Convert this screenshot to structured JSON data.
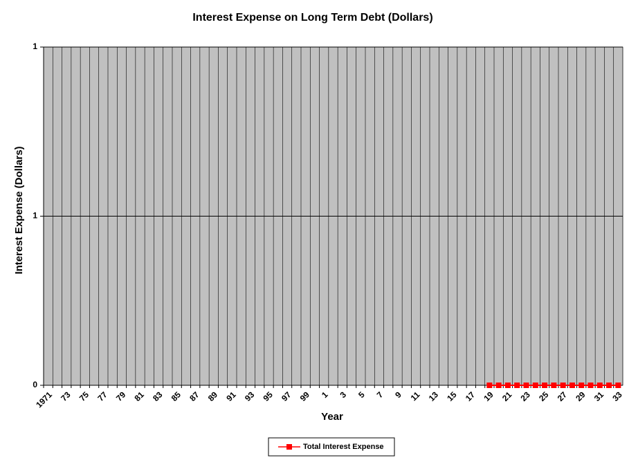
{
  "chart_data": {
    "type": "line",
    "title": "Interest Expense on Long Term Debt (Dollars)",
    "x_label": "Year",
    "y_label": "Interest Expense (Dollars)",
    "categories": [
      "1971",
      null,
      "73",
      null,
      "75",
      null,
      "77",
      null,
      "79",
      null,
      "81",
      null,
      "83",
      null,
      "85",
      null,
      "87",
      null,
      "89",
      null,
      "91",
      null,
      "93",
      null,
      "95",
      null,
      "97",
      null,
      "99",
      null,
      "1",
      null,
      "3",
      null,
      "5",
      null,
      "7",
      null,
      "9",
      null,
      "11",
      null,
      "13",
      null,
      "15",
      null,
      "17",
      null,
      "19",
      null,
      "21",
      null,
      "23",
      null,
      "25",
      null,
      "27",
      null,
      "29",
      null,
      "31",
      null,
      "33"
    ],
    "series": [
      {
        "name": "Total Interest Expense",
        "color": "#ff0000",
        "values": [
          null,
          null,
          null,
          null,
          null,
          null,
          null,
          null,
          null,
          null,
          null,
          null,
          null,
          null,
          null,
          null,
          null,
          null,
          null,
          null,
          null,
          null,
          null,
          null,
          null,
          null,
          null,
          null,
          null,
          null,
          null,
          null,
          null,
          null,
          null,
          null,
          null,
          null,
          null,
          null,
          null,
          null,
          null,
          null,
          null,
          null,
          null,
          null,
          0,
          0,
          0,
          0,
          0,
          0,
          0,
          0,
          0,
          0,
          0,
          0,
          0,
          0,
          0
        ]
      }
    ],
    "ylim": [
      0,
      1
    ],
    "yticks": [
      0,
      {
        "value": 0.5,
        "label": "1"
      },
      {
        "value": 1,
        "label": "1"
      }
    ],
    "grid": true,
    "legend": "bottom"
  }
}
